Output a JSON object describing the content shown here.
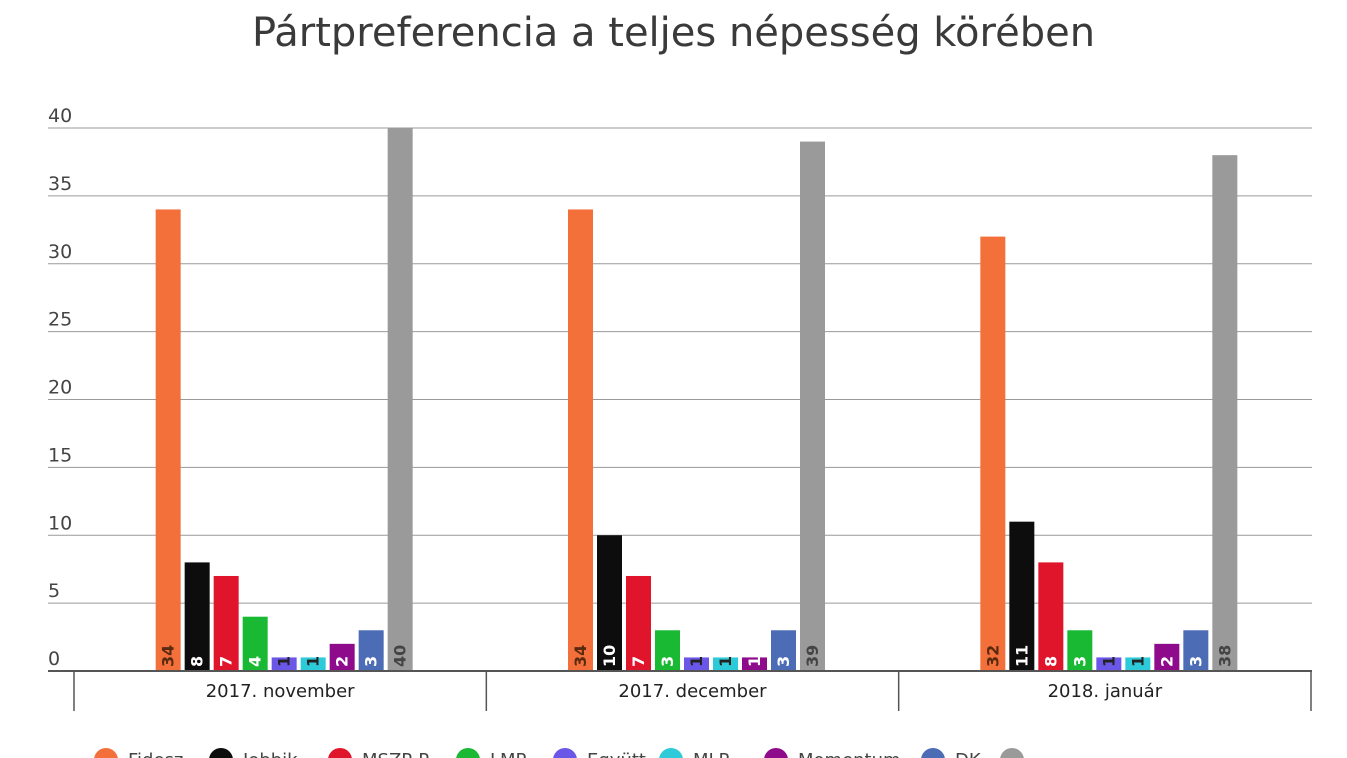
{
  "chart_data": {
    "type": "bar",
    "title": "Pártpreferencia a teljes népesség körében",
    "xlabel": "",
    "ylabel": "",
    "ylim": [
      0,
      40
    ],
    "yticks": [
      "0",
      "5",
      "10",
      "15",
      "20",
      "25",
      "30",
      "35",
      "40"
    ],
    "grid": true,
    "legend_position": "bottom",
    "categories": [
      "2017. november",
      "2017. december",
      "2018. január"
    ],
    "series": [
      {
        "name": "Fidesz",
        "color": "#F4703A",
        "values": [
          34,
          34,
          32
        ]
      },
      {
        "name": "Jobbik",
        "color": "#0D0D0D",
        "values": [
          8,
          10,
          11
        ]
      },
      {
        "name": "MSZP-P",
        "color": "#E0142A",
        "values": [
          7,
          7,
          8
        ]
      },
      {
        "name": "LMP",
        "color": "#19B934",
        "values": [
          4,
          3,
          3
        ]
      },
      {
        "name": "Együtt",
        "color": "#6A57E8",
        "values": [
          1,
          1,
          1
        ]
      },
      {
        "name": "MLP",
        "color": "#2DCBD9",
        "values": [
          1,
          1,
          1
        ]
      },
      {
        "name": "Momentum",
        "color": "#8E0B8C",
        "values": [
          2,
          1,
          2
        ]
      },
      {
        "name": "DK",
        "color": "#4C6CB5",
        "values": [
          3,
          3,
          3
        ]
      },
      {
        "name": "",
        "color": "#9A9A9A",
        "values": [
          40,
          39,
          38
        ]
      }
    ],
    "data_label_colors": [
      "#5a2a10",
      "#ffffff",
      "#ffffff",
      "#ffffff",
      "#222222",
      "#222222",
      "#ffffff",
      "#ffffff",
      "#444444"
    ]
  }
}
